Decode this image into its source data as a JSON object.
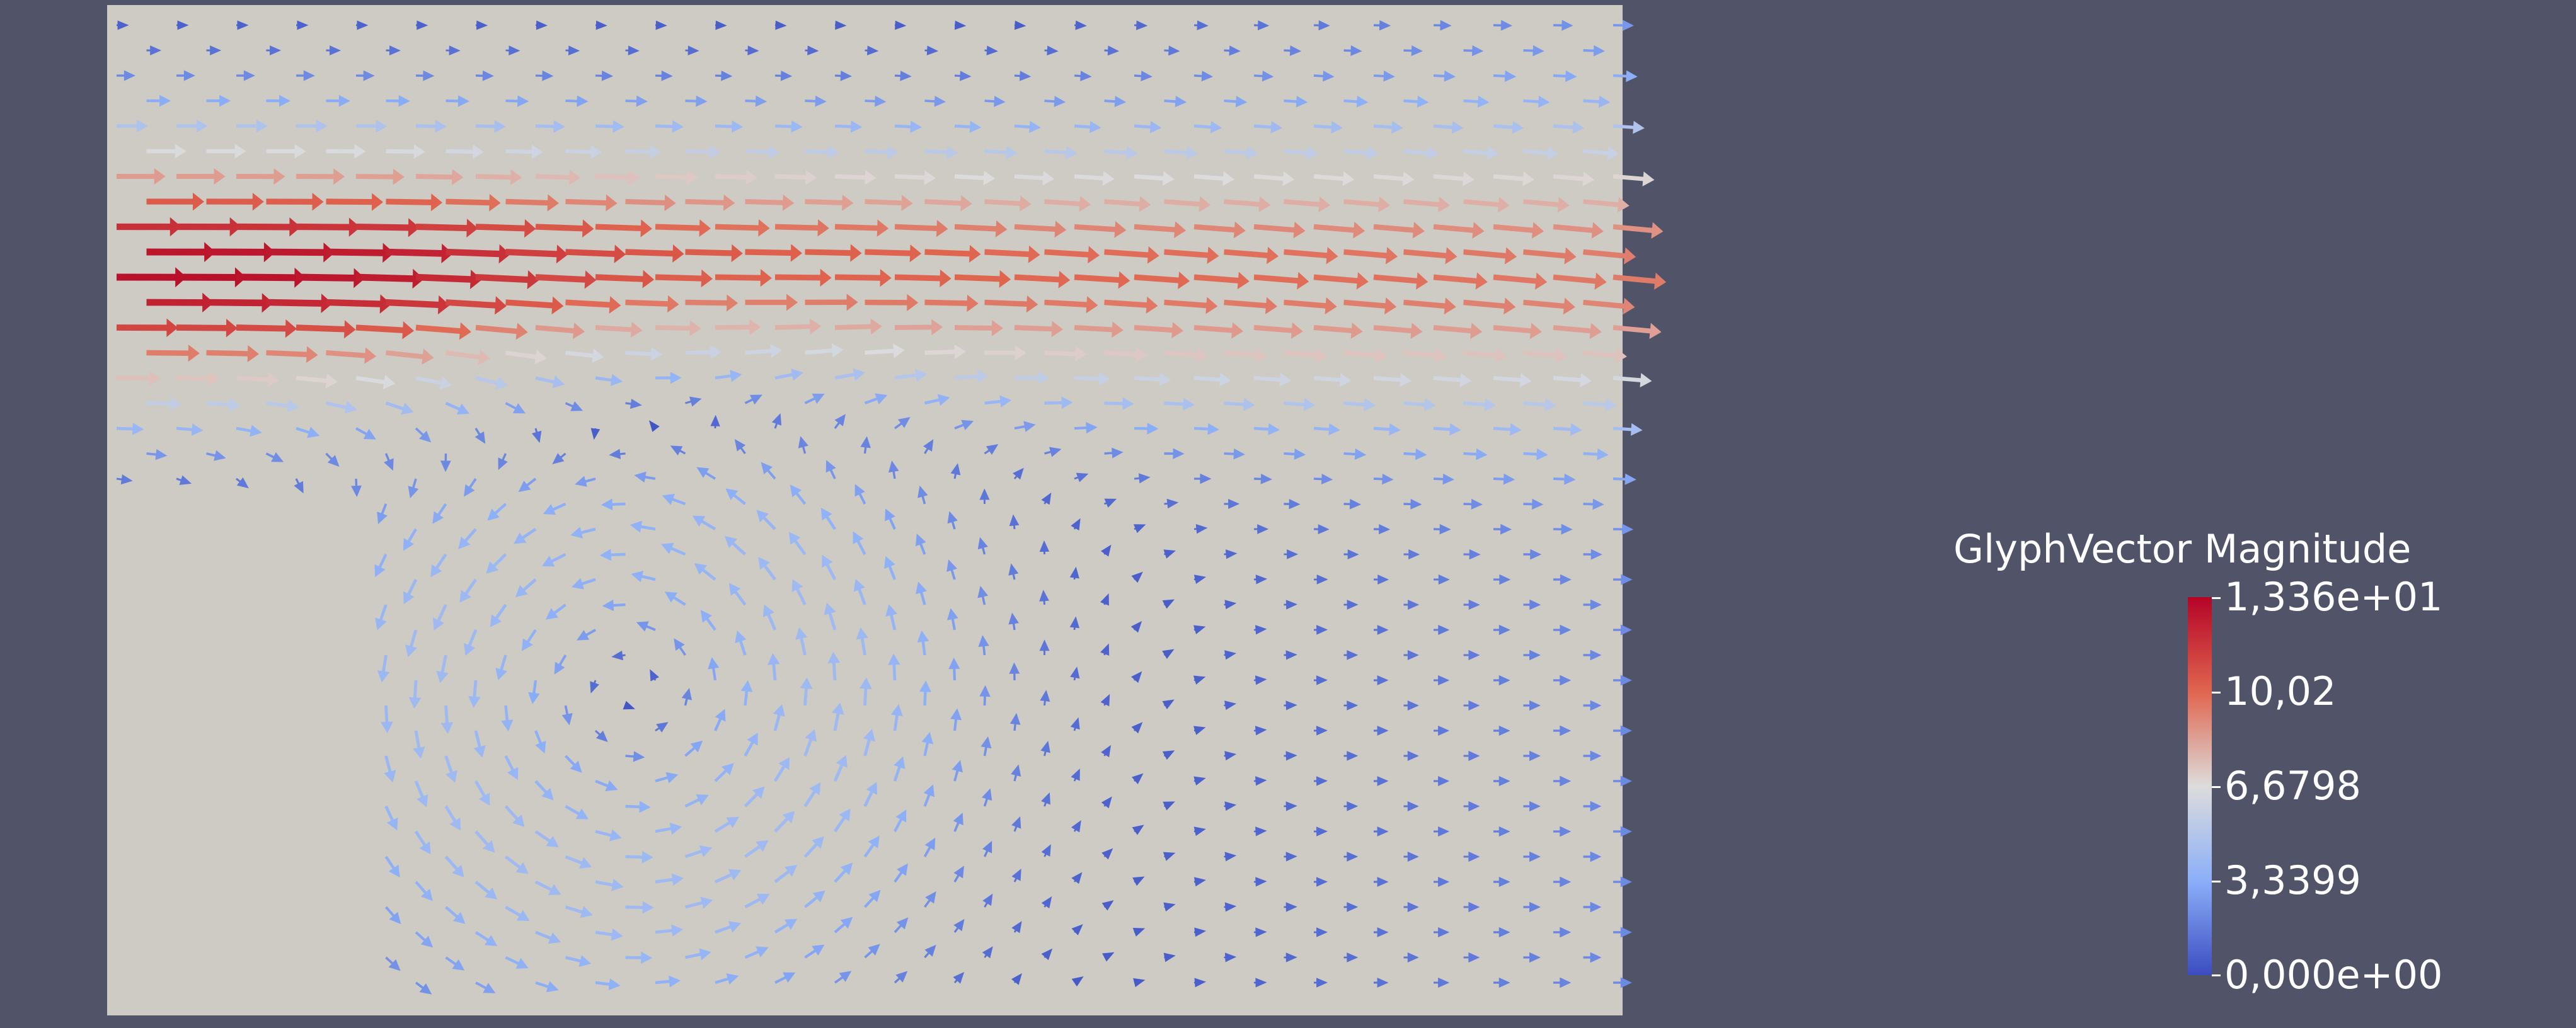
{
  "viewport": {
    "background_color": "#515368",
    "domain_color": "#cdcbc3",
    "glyph_field": "GlyphVector"
  },
  "legend": {
    "title": "GlyphVector Magnitude",
    "labels": [
      "1,336e+01",
      "10,02",
      "6,6798",
      "3,3399",
      "0,000e+00"
    ],
    "range": [
      0,
      13.36
    ],
    "colormap": [
      "#3b4cc0",
      "#8caff8",
      "#dddcdc",
      "#e0654f",
      "#b40426"
    ]
  }
}
